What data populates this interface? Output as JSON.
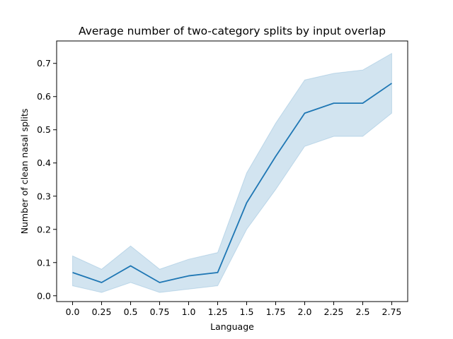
{
  "chart_data": {
    "type": "line",
    "title": "Average number of two-category splits by input overlap",
    "xlabel": "Language",
    "ylabel": "Number of clean nasal splits",
    "x": [
      0.0,
      0.25,
      0.5,
      0.75,
      1.0,
      1.25,
      1.5,
      1.75,
      2.0,
      2.25,
      2.5,
      2.75
    ],
    "x_tick_labels": [
      "0.0",
      "0.25",
      "0.5",
      "0.75",
      "1.0",
      "1.25",
      "1.5",
      "1.75",
      "2.0",
      "2.25",
      "2.5",
      "2.75"
    ],
    "y_ticks": [
      0.0,
      0.1,
      0.2,
      0.3,
      0.4,
      0.5,
      0.6,
      0.7
    ],
    "y_tick_labels": [
      "0.0",
      "0.1",
      "0.2",
      "0.3",
      "0.4",
      "0.5",
      "0.6",
      "0.7"
    ],
    "xlim": [
      -0.1375,
      2.8875
    ],
    "ylim": [
      -0.0175,
      0.7675
    ],
    "grid": false,
    "series": [
      {
        "values": [
          0.07,
          0.04,
          0.09,
          0.04,
          0.06,
          0.07,
          0.28,
          0.42,
          0.55,
          0.58,
          0.58,
          0.64
        ],
        "ci_lower": [
          0.03,
          0.01,
          0.04,
          0.01,
          0.02,
          0.03,
          0.2,
          0.32,
          0.45,
          0.48,
          0.48,
          0.55
        ],
        "ci_upper": [
          0.12,
          0.08,
          0.15,
          0.08,
          0.11,
          0.13,
          0.37,
          0.52,
          0.65,
          0.67,
          0.68,
          0.73
        ],
        "color": "#1f77b4"
      }
    ]
  }
}
